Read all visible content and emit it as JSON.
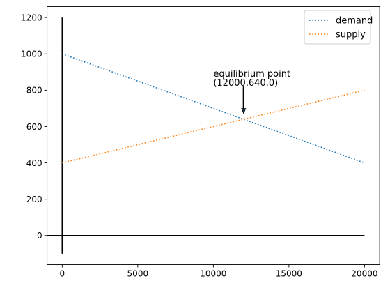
{
  "chart_data": {
    "type": "line",
    "title": "",
    "xlabel": "",
    "ylabel": "",
    "xlim": [
      -1000,
      21000
    ],
    "ylim": [
      -160,
      1260
    ],
    "xticks": [
      0,
      5000,
      10000,
      15000,
      20000
    ],
    "yticks": [
      0,
      200,
      400,
      600,
      800,
      1000,
      1200
    ],
    "grid": false,
    "legend_position": "top-right",
    "series": [
      {
        "name": "demand",
        "color": "#1f77b4",
        "linestyle": "dotted",
        "x": [
          0,
          20000
        ],
        "y": [
          1000,
          400
        ]
      },
      {
        "name": "supply",
        "color": "#ff7f0e",
        "linestyle": "dotted",
        "x": [
          0,
          20000
        ],
        "y": [
          400,
          800
        ]
      }
    ],
    "reference_lines": [
      {
        "x": [
          -1000,
          20000
        ],
        "y": [
          0,
          0
        ],
        "color": "#000000"
      },
      {
        "x": [
          0,
          0
        ],
        "y": [
          -100,
          1200
        ],
        "color": "#000000"
      }
    ],
    "annotation": {
      "line1": "equilibrium point",
      "line2": "(12000,640.0)",
      "text_at": [
        10000,
        840
      ],
      "arrow_from": [
        12000,
        820
      ],
      "arrow_to": [
        12000,
        680
      ],
      "point": [
        12000,
        640
      ]
    }
  }
}
